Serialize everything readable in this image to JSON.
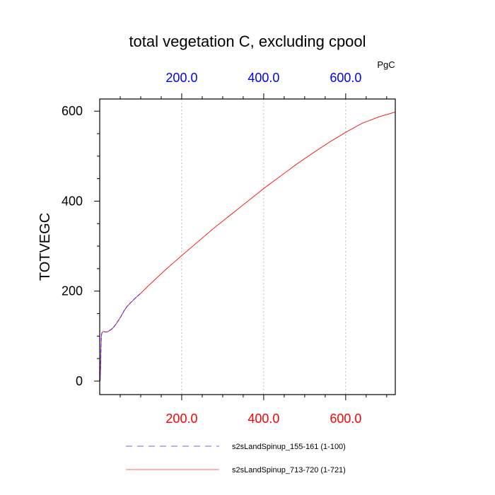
{
  "chart_data": {
    "type": "line",
    "title": "total vegetation C, excluding cpool",
    "ylabel": "TOTVEGC",
    "units": "PgC",
    "xlabel": "",
    "xlim": [
      0,
      721
    ],
    "ylim": [
      -30,
      627
    ],
    "x_ticks": [
      200,
      400,
      600
    ],
    "x_tick_labels": [
      "200.0",
      "400.0",
      "600.0"
    ],
    "y_ticks": [
      0,
      200,
      400,
      600
    ],
    "y_tick_labels": [
      "0",
      "200",
      "400",
      "600"
    ],
    "colors": {
      "bottom_tick_labels": "#ff0000",
      "top_tick_labels": "#0000ff",
      "series_1": "#6666ff",
      "series_2": "#ff0000",
      "grid": "#aaaaaa"
    },
    "series": [
      {
        "name": "s2sLandSpinup_155-161 (1-100)",
        "style": "dashed",
        "color": "#3333ff",
        "x": [
          1,
          2,
          3,
          4,
          5,
          6,
          8,
          10,
          15,
          20,
          25,
          30,
          35,
          40,
          45,
          50,
          55,
          60,
          65,
          70,
          75,
          80,
          85,
          90,
          95,
          100
        ],
        "y": [
          0,
          30,
          70,
          100,
          106,
          108,
          110,
          110,
          109,
          110,
          113,
          116,
          121,
          127,
          134,
          141,
          149,
          157,
          164,
          169,
          174,
          178,
          183,
          187,
          191,
          195
        ]
      },
      {
        "name": "s2sLandSpinup_713-720 (1-721)",
        "style": "solid",
        "color": "#ff0000",
        "x": [
          1,
          2,
          3,
          4,
          5,
          6,
          8,
          10,
          15,
          20,
          25,
          30,
          35,
          40,
          45,
          50,
          55,
          60,
          65,
          70,
          75,
          80,
          85,
          90,
          95,
          100,
          120,
          140,
          160,
          180,
          200,
          240,
          280,
          320,
          360,
          400,
          440,
          480,
          520,
          560,
          600,
          640,
          680,
          721
        ],
        "y": [
          0,
          30,
          70,
          100,
          106,
          108,
          110,
          110,
          109,
          110,
          113,
          116,
          121,
          127,
          134,
          141,
          149,
          157,
          164,
          169,
          174,
          178,
          183,
          187,
          191,
          195,
          213,
          230,
          247,
          263,
          279,
          310,
          341,
          370,
          399,
          428,
          455,
          482,
          507,
          531,
          553,
          573,
          587,
          598
        ]
      }
    ]
  }
}
